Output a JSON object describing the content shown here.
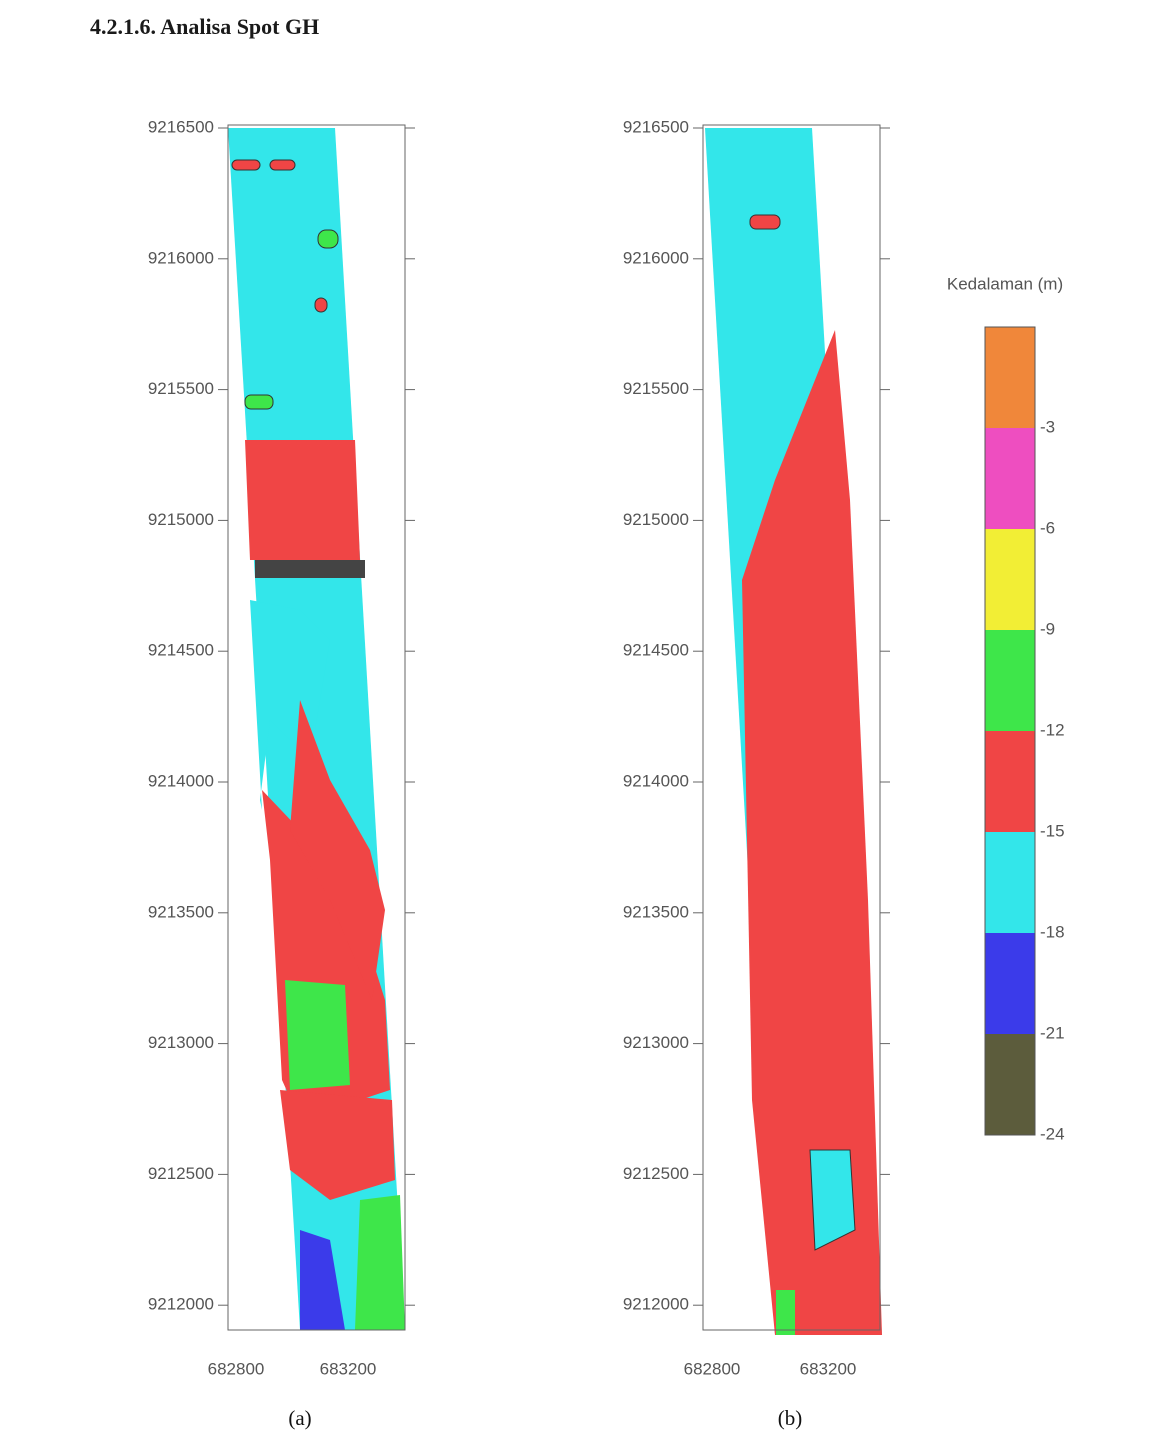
{
  "header": {
    "title": "4.2.1.6. Analisa Spot GH"
  },
  "figures": [
    {
      "y_ticks": [
        9216500,
        9216000,
        9215500,
        9215000,
        9214500,
        9214000,
        9213500,
        9213000,
        9212500,
        9212000
      ],
      "x_ticks": [
        682800,
        683200
      ],
      "caption": "(a)"
    },
    {
      "y_ticks": [
        9216500,
        9216000,
        9215500,
        9215000,
        9214500,
        9214000,
        9213500,
        9213000,
        9212500,
        9212000
      ],
      "x_ticks": [
        682800,
        683200
      ],
      "caption": "(b)"
    }
  ],
  "legend": {
    "title": "Kedalaman (m)",
    "labels": [
      -3,
      -6,
      -9,
      -12,
      -15,
      -18,
      -21,
      -24
    ]
  }
}
